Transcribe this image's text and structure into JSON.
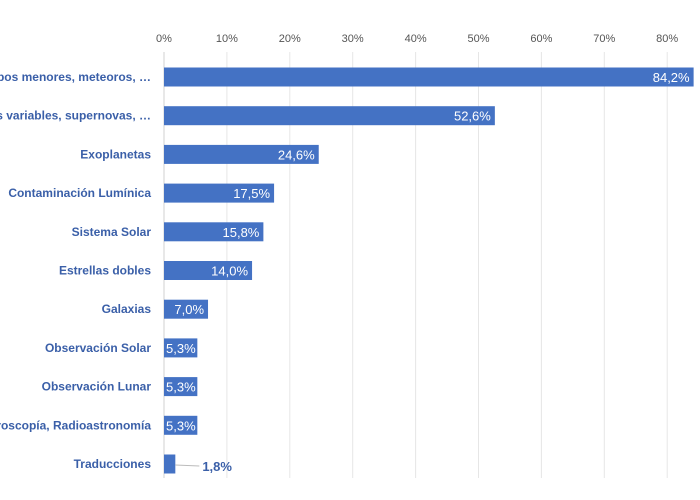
{
  "chart_data": {
    "type": "bar",
    "orientation": "horizontal",
    "title": "",
    "xlabel": "",
    "ylabel": "",
    "xlim": [
      0,
      84
    ],
    "x_ticks": [
      "0%",
      "10%",
      "20%",
      "30%",
      "40%",
      "50%",
      "60%",
      "70%",
      "80%"
    ],
    "x_tick_values": [
      0,
      10,
      20,
      30,
      40,
      50,
      60,
      70,
      80
    ],
    "grid": "vertical",
    "legend": "none",
    "bar_color": "#4472c4",
    "label_color": "#3a5fa8",
    "categories": [
      "Cuerpos menores, meteoros, …",
      "Estrellas variables, supernovas, …",
      "Exoplanetas",
      "Contaminación Lumínica",
      "Sistema Solar",
      "Estrellas dobles",
      "Galaxias",
      "Observación Solar",
      "Observación Lunar",
      "Espectroscopía, Radioastronomía",
      "Traducciones"
    ],
    "values": [
      84.2,
      52.6,
      24.6,
      17.5,
      15.8,
      14.0,
      7.0,
      5.3,
      5.3,
      5.3,
      1.8
    ],
    "value_labels": [
      "84,2%",
      "52,6%",
      "24,6%",
      "17,5%",
      "15,8%",
      "14,0%",
      "7,0%",
      "5,3%",
      "5,3%",
      "5,3%",
      "1,8%"
    ]
  }
}
